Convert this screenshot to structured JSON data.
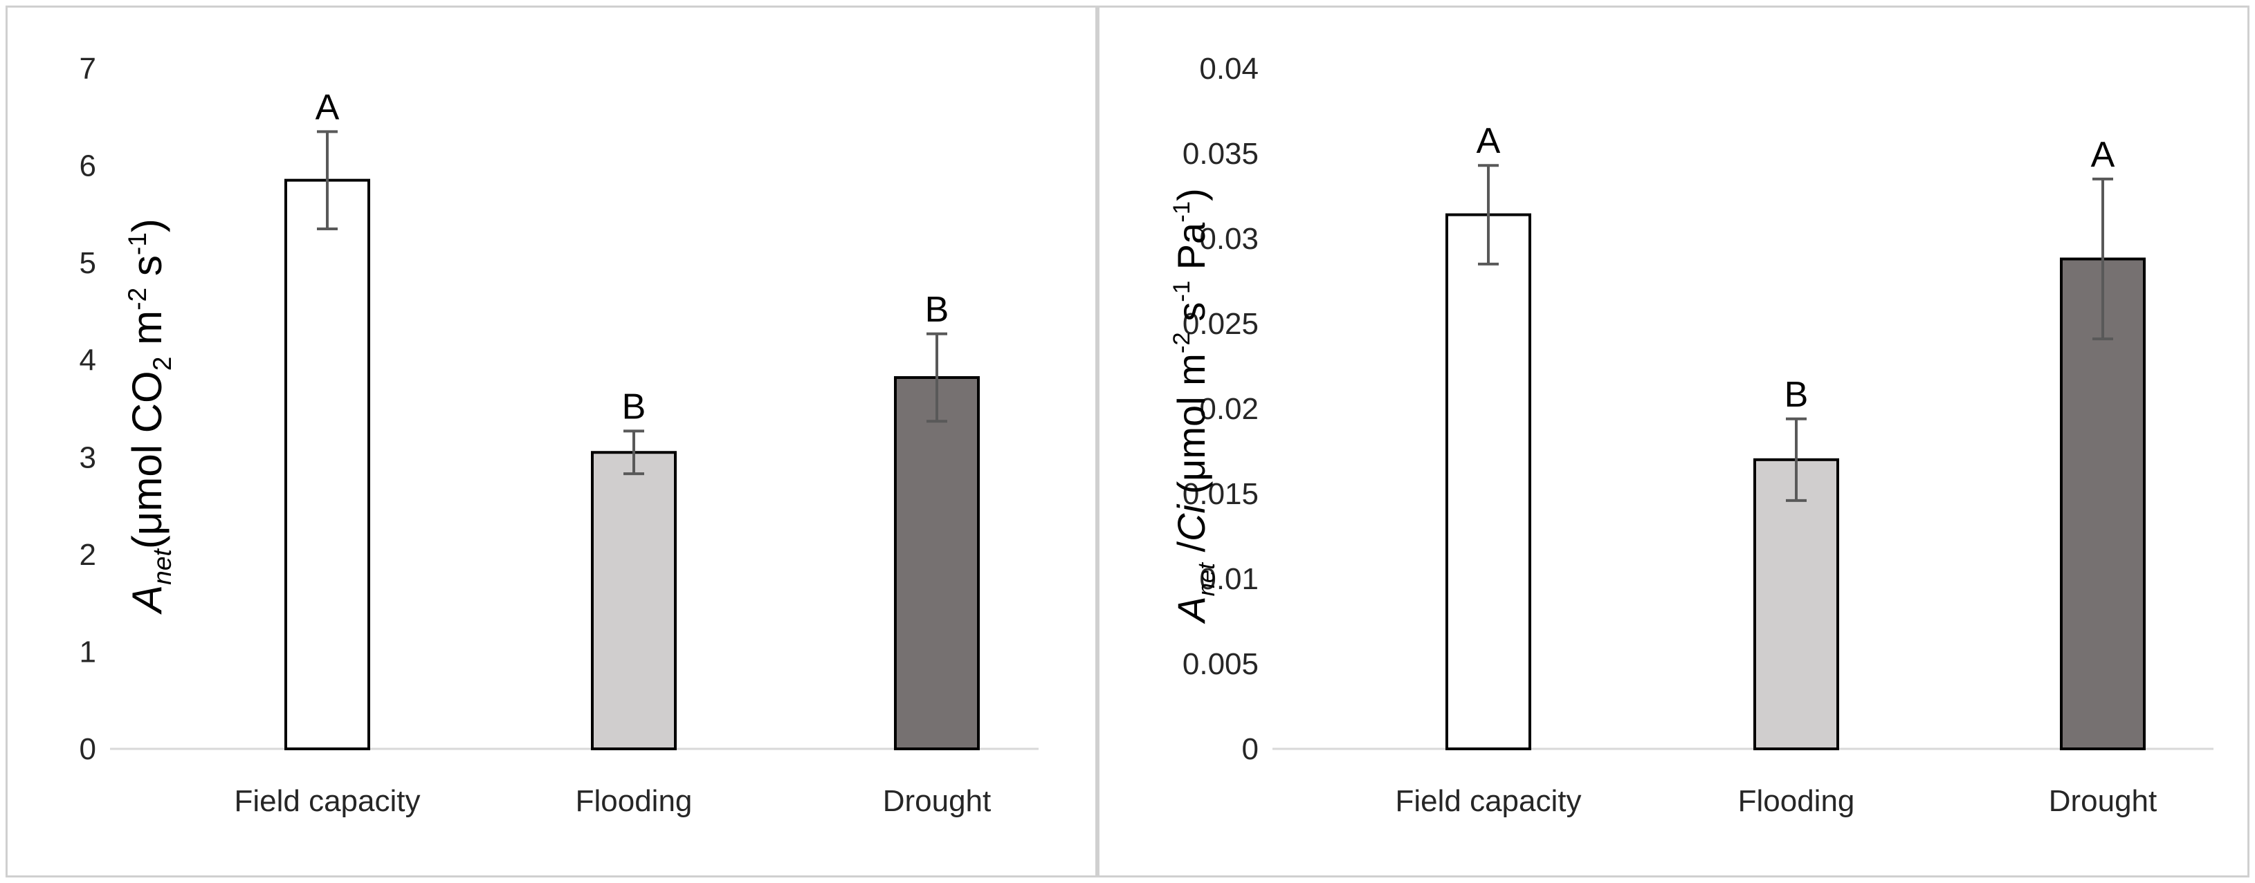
{
  "chart_data": [
    {
      "type": "bar",
      "categories": [
        "Field capacity",
        "Flooding",
        "Drought"
      ],
      "values": [
        5.85,
        3.05,
        3.82
      ],
      "errors": [
        0.5,
        0.22,
        0.45
      ],
      "significance": [
        "A",
        "B",
        "B"
      ],
      "colors": [
        "#ffffff",
        "#d0cece",
        "#767171"
      ],
      "ylim": [
        0,
        7
      ],
      "yticks": [
        "0",
        "1",
        "2",
        "3",
        "4",
        "5",
        "6",
        "7"
      ],
      "ylabel": {
        "symbol": "A",
        "subscript": "net",
        "text_before": "(μmol CO",
        "co2_sub": "2",
        "text_mid1": " m",
        "sup1": "-2",
        "text_mid2": " s",
        "sup2": "-1",
        "text_end": ")"
      },
      "xlabel": "",
      "grid": false
    },
    {
      "type": "bar",
      "categories": [
        "Field capacity",
        "Flooding",
        "Drought"
      ],
      "values": [
        0.0314,
        0.017,
        0.0288
      ],
      "errors": [
        0.0029,
        0.0024,
        0.0047
      ],
      "significance": [
        "A",
        "B",
        "A"
      ],
      "colors": [
        "#ffffff",
        "#d0cece",
        "#767171"
      ],
      "ylim": [
        0,
        0.04
      ],
      "yticks": [
        "0",
        "0.005",
        "0.01",
        "0.015",
        "0.02",
        "0.025",
        "0.03",
        "0.035",
        "0.04"
      ],
      "ylabel": {
        "symbol": "A",
        "subscript": "net",
        "slash_part": " /",
        "ci": "Ci",
        "text_before": " (μmol m",
        "sup1": "-2",
        "text_mid": " s",
        "sup2": "-1",
        "text_mid2": " Pa",
        "sup3": "-1",
        "text_end": ")"
      },
      "xlabel": "",
      "grid": false
    }
  ]
}
